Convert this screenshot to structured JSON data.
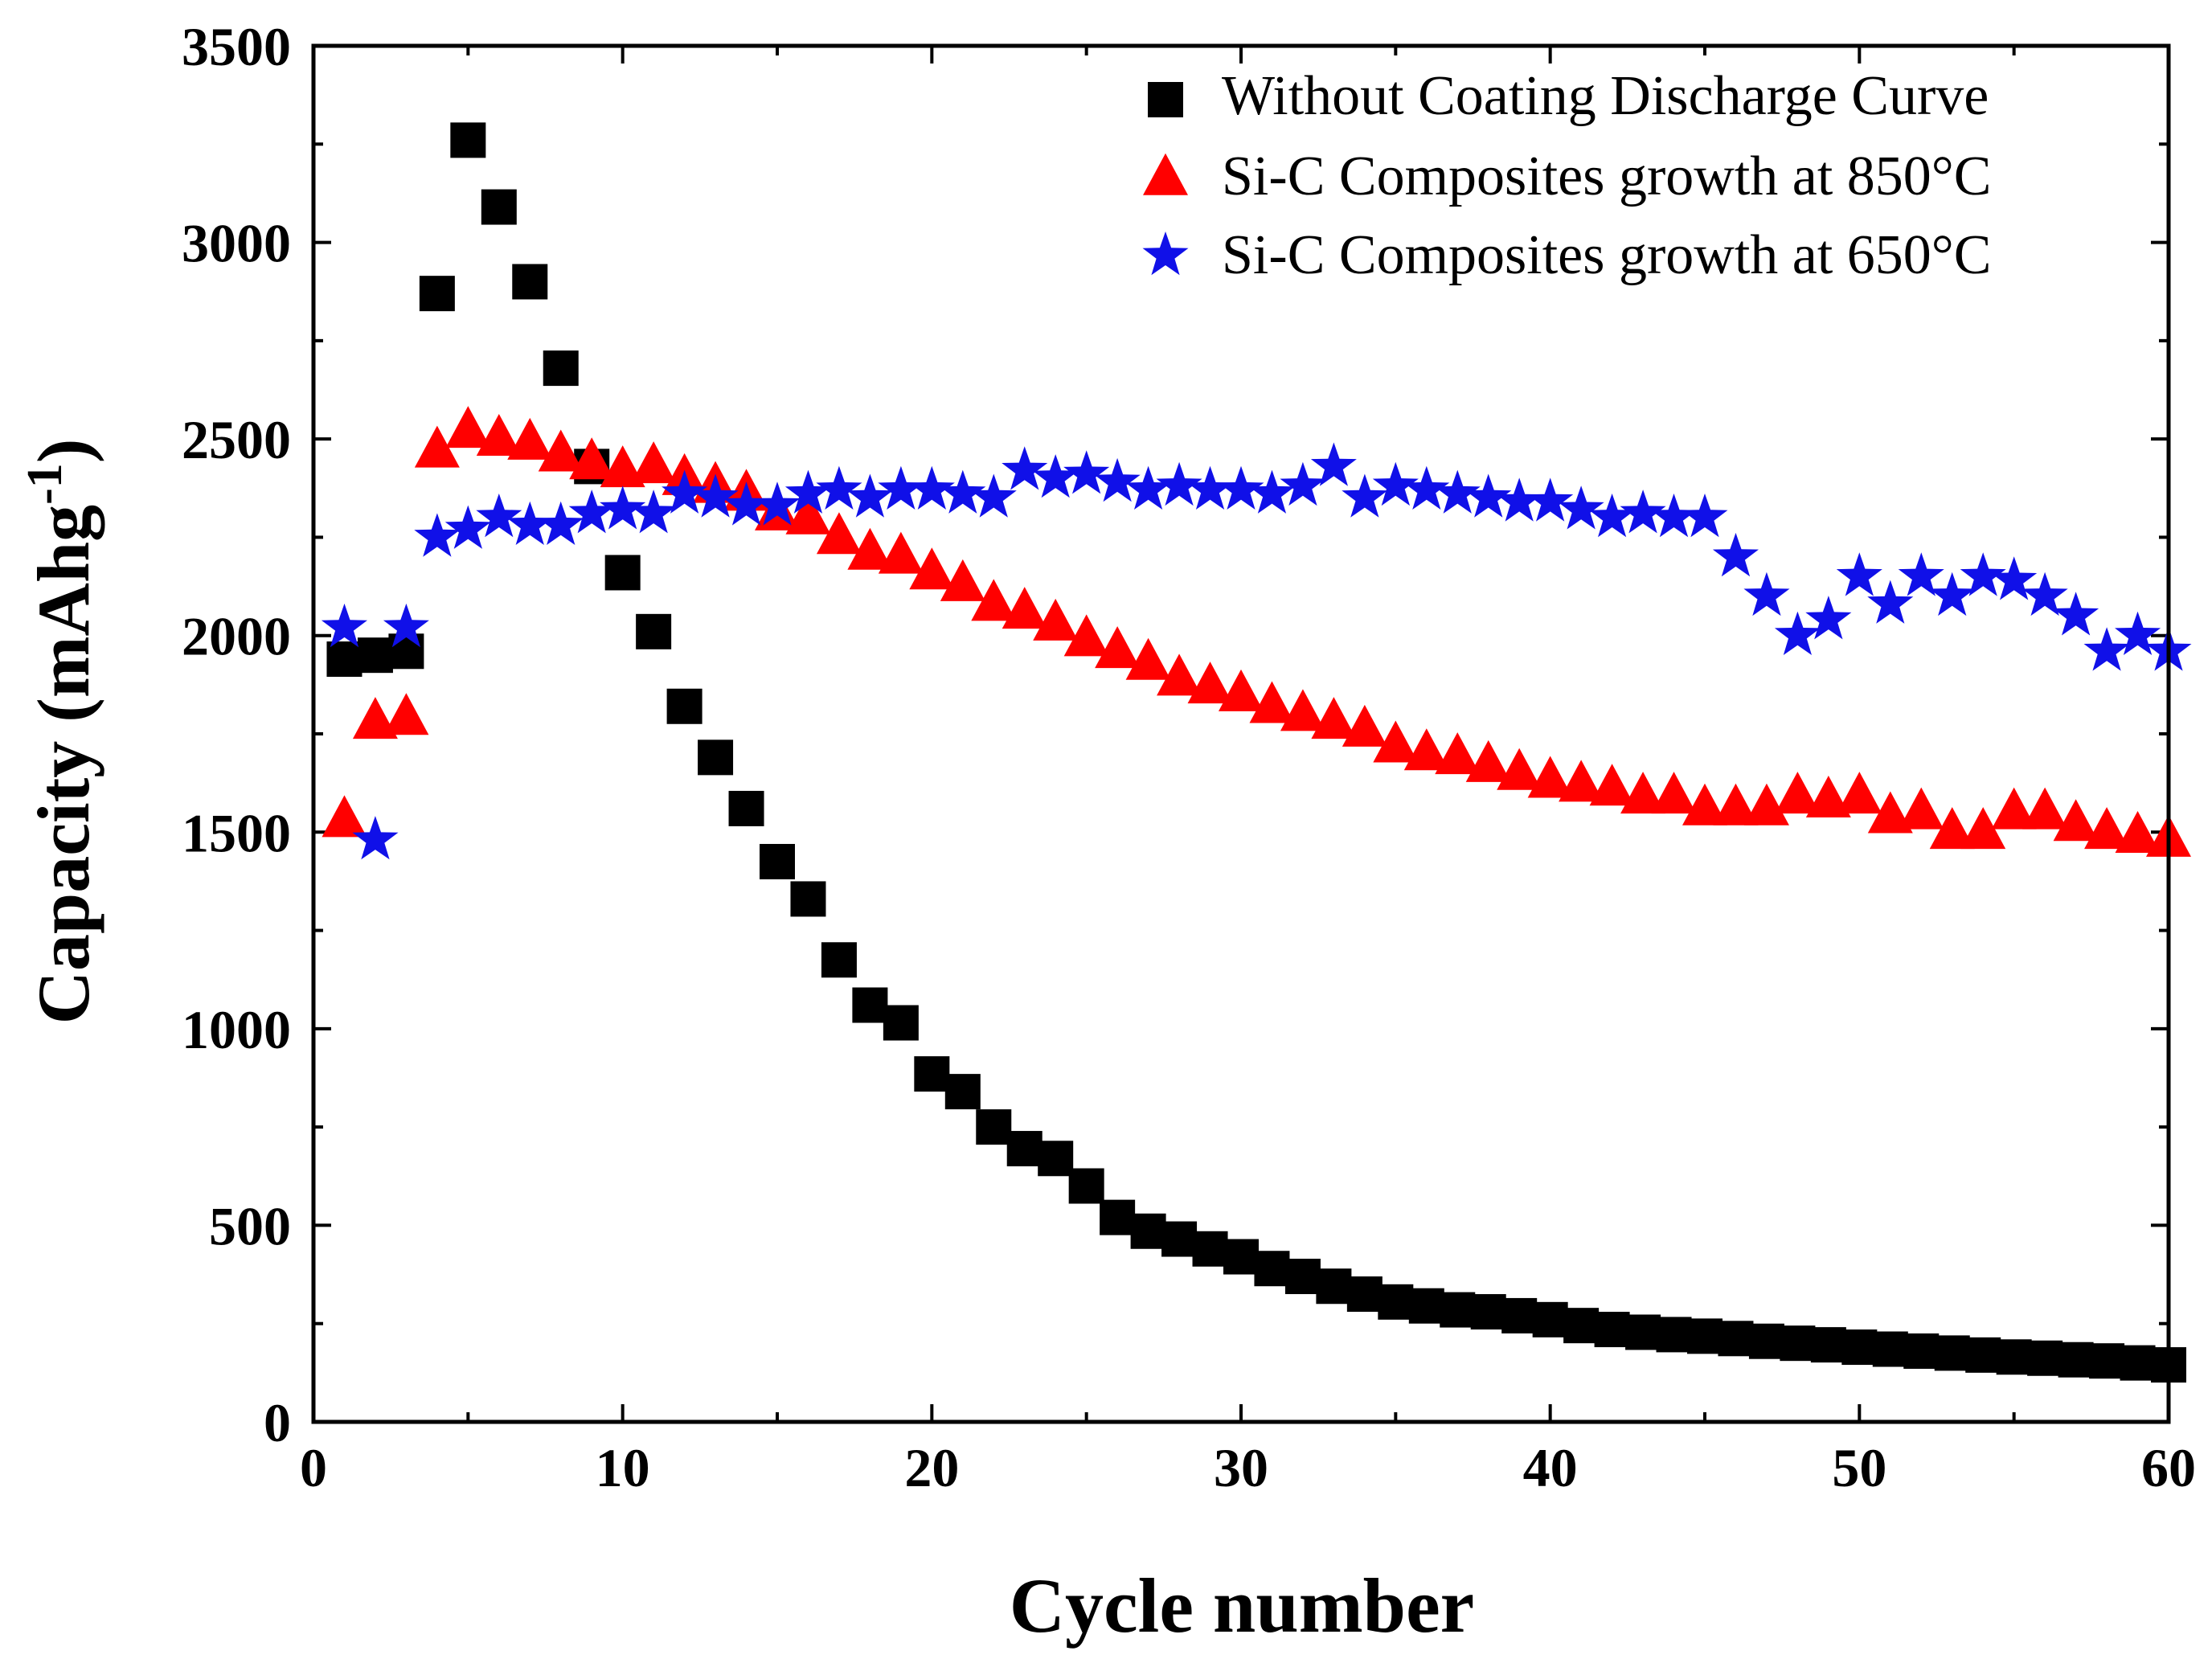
{
  "chart_data": {
    "type": "scatter",
    "xlabel": "Cycle number",
    "ylabel_main": "Capacity (mAhg",
    "ylabel_sup": "-1",
    "ylabel_close": ")",
    "xlim": [
      0,
      60
    ],
    "ylim": [
      0,
      3500
    ],
    "xticks": [
      0,
      10,
      20,
      30,
      40,
      50,
      60
    ],
    "yticks": [
      0,
      500,
      1000,
      1500,
      2000,
      2500,
      3000,
      3500
    ],
    "legend_position": "top-right",
    "series": [
      {
        "name": "Without Coating Discharge Curve",
        "marker": "square",
        "color": "#000000",
        "points": [
          [
            1,
            1940
          ],
          [
            2,
            1950
          ],
          [
            3,
            1960
          ],
          [
            4,
            2870
          ],
          [
            5,
            3260
          ],
          [
            6,
            3090
          ],
          [
            7,
            2900
          ],
          [
            8,
            2680
          ],
          [
            9,
            2430
          ],
          [
            10,
            2160
          ],
          [
            11,
            2010
          ],
          [
            12,
            1820
          ],
          [
            13,
            1690
          ],
          [
            14,
            1560
          ],
          [
            15,
            1425
          ],
          [
            16,
            1330
          ],
          [
            17,
            1175
          ],
          [
            18,
            1060
          ],
          [
            19,
            1015
          ],
          [
            20,
            885
          ],
          [
            21,
            840
          ],
          [
            22,
            750
          ],
          [
            23,
            695
          ],
          [
            24,
            670
          ],
          [
            25,
            600
          ],
          [
            26,
            520
          ],
          [
            27,
            485
          ],
          [
            28,
            465
          ],
          [
            29,
            440
          ],
          [
            30,
            420
          ],
          [
            31,
            390
          ],
          [
            32,
            370
          ],
          [
            33,
            345
          ],
          [
            34,
            325
          ],
          [
            35,
            305
          ],
          [
            36,
            295
          ],
          [
            37,
            285
          ],
          [
            38,
            280
          ],
          [
            39,
            270
          ],
          [
            40,
            260
          ],
          [
            41,
            245
          ],
          [
            42,
            235
          ],
          [
            43,
            228
          ],
          [
            44,
            222
          ],
          [
            45,
            218
          ],
          [
            46,
            212
          ],
          [
            47,
            205
          ],
          [
            48,
            200
          ],
          [
            49,
            196
          ],
          [
            50,
            190
          ],
          [
            51,
            185
          ],
          [
            52,
            180
          ],
          [
            53,
            175
          ],
          [
            54,
            170
          ],
          [
            55,
            165
          ],
          [
            56,
            162
          ],
          [
            57,
            158
          ],
          [
            58,
            155
          ],
          [
            59,
            150
          ],
          [
            60,
            145
          ]
        ]
      },
      {
        "name": "Si-C Composites growth at 850°C",
        "marker": "triangle",
        "color": "#ff0000",
        "points": [
          [
            1,
            1530
          ],
          [
            2,
            1780
          ],
          [
            3,
            1790
          ],
          [
            4,
            2470
          ],
          [
            5,
            2520
          ],
          [
            6,
            2500
          ],
          [
            7,
            2490
          ],
          [
            8,
            2460
          ],
          [
            9,
            2440
          ],
          [
            10,
            2420
          ],
          [
            11,
            2430
          ],
          [
            12,
            2400
          ],
          [
            13,
            2380
          ],
          [
            14,
            2360
          ],
          [
            15,
            2310
          ],
          [
            16,
            2300
          ],
          [
            17,
            2250
          ],
          [
            18,
            2210
          ],
          [
            19,
            2200
          ],
          [
            20,
            2160
          ],
          [
            21,
            2130
          ],
          [
            22,
            2080
          ],
          [
            23,
            2060
          ],
          [
            24,
            2030
          ],
          [
            25,
            1990
          ],
          [
            26,
            1960
          ],
          [
            27,
            1930
          ],
          [
            28,
            1890
          ],
          [
            29,
            1870
          ],
          [
            30,
            1850
          ],
          [
            31,
            1820
          ],
          [
            32,
            1800
          ],
          [
            33,
            1780
          ],
          [
            34,
            1760
          ],
          [
            35,
            1720
          ],
          [
            36,
            1700
          ],
          [
            37,
            1690
          ],
          [
            38,
            1670
          ],
          [
            39,
            1650
          ],
          [
            40,
            1630
          ],
          [
            41,
            1620
          ],
          [
            42,
            1610
          ],
          [
            43,
            1590
          ],
          [
            44,
            1590
          ],
          [
            45,
            1560
          ],
          [
            46,
            1560
          ],
          [
            47,
            1560
          ],
          [
            48,
            1590
          ],
          [
            49,
            1580
          ],
          [
            50,
            1590
          ],
          [
            51,
            1540
          ],
          [
            52,
            1550
          ],
          [
            53,
            1500
          ],
          [
            54,
            1500
          ],
          [
            55,
            1550
          ],
          [
            56,
            1550
          ],
          [
            57,
            1520
          ],
          [
            58,
            1500
          ],
          [
            59,
            1490
          ],
          [
            60,
            1480
          ]
        ]
      },
      {
        "name": "Si-C Composites growth at 650°C",
        "marker": "star",
        "color": "#1010e8",
        "points": [
          [
            1,
            2020
          ],
          [
            2,
            1480
          ],
          [
            3,
            2020
          ],
          [
            4,
            2250
          ],
          [
            5,
            2270
          ],
          [
            6,
            2300
          ],
          [
            7,
            2280
          ],
          [
            8,
            2280
          ],
          [
            9,
            2310
          ],
          [
            10,
            2320
          ],
          [
            11,
            2310
          ],
          [
            12,
            2360
          ],
          [
            13,
            2350
          ],
          [
            14,
            2330
          ],
          [
            15,
            2330
          ],
          [
            16,
            2360
          ],
          [
            17,
            2370
          ],
          [
            18,
            2350
          ],
          [
            19,
            2370
          ],
          [
            20,
            2370
          ],
          [
            21,
            2360
          ],
          [
            22,
            2350
          ],
          [
            23,
            2420
          ],
          [
            24,
            2400
          ],
          [
            25,
            2410
          ],
          [
            26,
            2390
          ],
          [
            27,
            2370
          ],
          [
            28,
            2380
          ],
          [
            29,
            2370
          ],
          [
            30,
            2370
          ],
          [
            31,
            2360
          ],
          [
            32,
            2380
          ],
          [
            33,
            2430
          ],
          [
            34,
            2350
          ],
          [
            35,
            2380
          ],
          [
            36,
            2370
          ],
          [
            37,
            2360
          ],
          [
            38,
            2350
          ],
          [
            39,
            2340
          ],
          [
            40,
            2340
          ],
          [
            41,
            2320
          ],
          [
            42,
            2300
          ],
          [
            43,
            2310
          ],
          [
            44,
            2300
          ],
          [
            45,
            2300
          ],
          [
            46,
            2200
          ],
          [
            47,
            2100
          ],
          [
            48,
            2000
          ],
          [
            49,
            2040
          ],
          [
            50,
            2150
          ],
          [
            51,
            2080
          ],
          [
            52,
            2150
          ],
          [
            53,
            2100
          ],
          [
            54,
            2150
          ],
          [
            55,
            2140
          ],
          [
            56,
            2100
          ],
          [
            57,
            2050
          ],
          [
            58,
            1960
          ],
          [
            59,
            2000
          ],
          [
            60,
            1960
          ]
        ]
      }
    ]
  }
}
